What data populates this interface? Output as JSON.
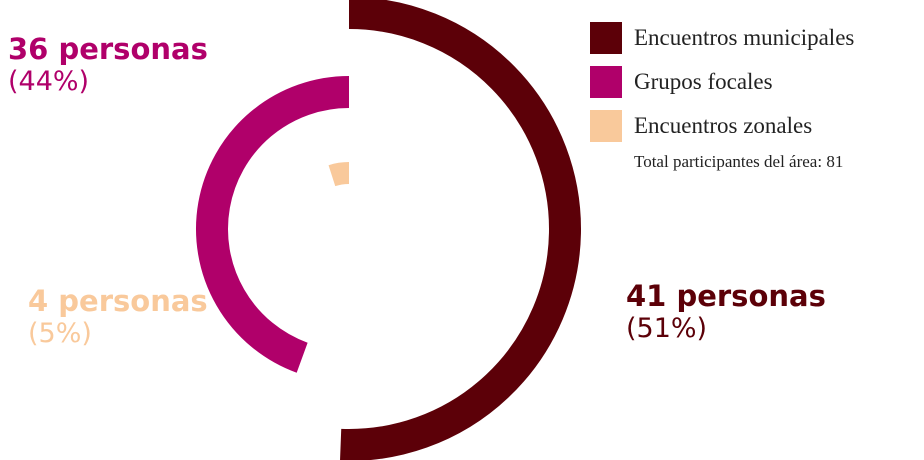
{
  "chart_data": {
    "type": "radial_bar",
    "title": "",
    "total_label": "Total participantes del área: 81",
    "categories": [
      "Encuentros municipales",
      "Grupos focales",
      "Encuentros zonales"
    ],
    "values": [
      41,
      36,
      4
    ],
    "percentages": [
      "(51%)",
      "(44%)",
      "(5%)"
    ],
    "value_labels": [
      "41 personas",
      "36 personas",
      "4 personas"
    ],
    "colors": [
      "#5c0008",
      "#b0006a",
      "#f9c99b"
    ],
    "max_value": 81,
    "legend_position": "top-right"
  }
}
